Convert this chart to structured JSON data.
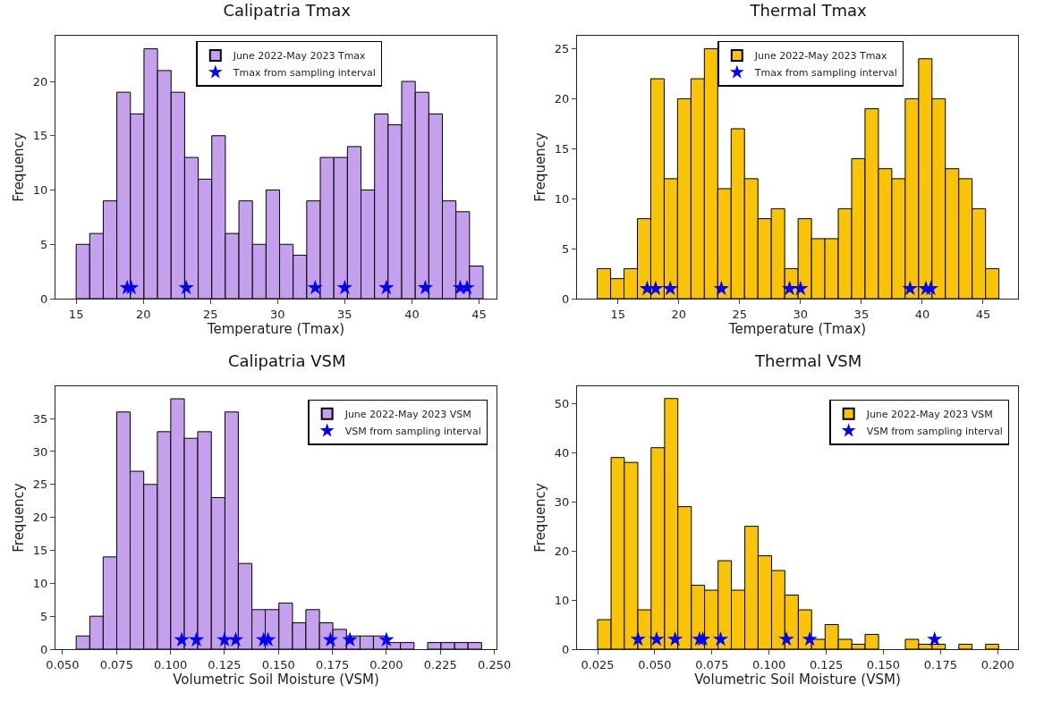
{
  "chart_data": [
    {
      "type": "histogram",
      "title": "Calipatria Tmax",
      "xlabel": "Temperature (Tmax)",
      "ylabel": "Frequency",
      "xlim": [
        13.46,
        46.3
      ],
      "xticks": [
        15,
        20,
        25,
        30,
        35,
        40,
        45
      ],
      "ylim": [
        0,
        24.2
      ],
      "yticks": [
        0,
        5,
        10,
        15,
        20
      ],
      "grid": false,
      "legend": "top",
      "series": [
        {
          "type": "histogram",
          "name": "June 2022-May 2023 Tmax",
          "color": "#c5a0ec",
          "bins": [
            15.0,
            16.01,
            17.02,
            18.03,
            19.04,
            20.05,
            21.06,
            22.07,
            23.08,
            24.09,
            25.1,
            26.11,
            27.12,
            28.13,
            29.14,
            30.15,
            31.16,
            32.17,
            33.18,
            34.19,
            35.2,
            36.21,
            37.22,
            38.23,
            39.24,
            40.25,
            41.26,
            42.27,
            43.28,
            44.29,
            45.3
          ],
          "values": [
            5,
            6,
            9,
            19,
            17,
            23,
            21,
            19,
            13,
            11,
            15,
            6,
            9,
            5,
            10,
            5,
            4,
            9,
            13,
            13,
            14,
            10,
            17,
            16,
            20,
            19,
            17,
            9,
            8,
            3
          ]
        },
        {
          "type": "scatter",
          "name": "Tmax from sampling interval",
          "color": "#0000ff",
          "marker": "star",
          "x": [
            18.8,
            19.1,
            23.2,
            32.8,
            35.0,
            38.1,
            41.0,
            43.6,
            44.1
          ],
          "values": [
            1,
            1,
            1,
            1,
            1,
            1,
            1,
            1,
            1
          ]
        }
      ]
    },
    {
      "type": "histogram",
      "title": "Thermal Tmax",
      "xlabel": "Temperature (Tmax)",
      "ylabel": "Frequency",
      "xlim": [
        11.64,
        47.87
      ],
      "xticks": [
        15,
        20,
        25,
        30,
        35,
        40,
        45
      ],
      "ylim": [
        0,
        26.3
      ],
      "yticks": [
        0,
        5,
        10,
        15,
        20,
        25
      ],
      "grid": false,
      "legend": "top",
      "series": [
        {
          "type": "histogram",
          "name": "June 2022-May 2023 Tmax",
          "color": "#f9c306",
          "bins": [
            13.3,
            14.4,
            15.5,
            16.6,
            17.7,
            18.8,
            19.9,
            21.0,
            22.1,
            23.2,
            24.3,
            25.4,
            26.5,
            27.6,
            28.7,
            29.8,
            30.9,
            32.0,
            33.1,
            34.2,
            35.3,
            36.4,
            37.5,
            38.6,
            39.7,
            40.8,
            41.9,
            43.0,
            44.1,
            45.2,
            46.3
          ],
          "values": [
            3,
            2,
            3,
            8,
            22,
            12,
            20,
            22,
            25,
            11,
            17,
            12,
            8,
            9,
            3,
            8,
            6,
            6,
            9,
            14,
            19,
            13,
            12,
            20,
            24,
            20,
            13,
            12,
            9,
            3
          ]
        },
        {
          "type": "scatter",
          "name": "Tmax from sampling interval",
          "color": "#0000ff",
          "marker": "star",
          "x": [
            17.4,
            18.1,
            19.3,
            23.5,
            29.1,
            30.0,
            39.0,
            40.3,
            40.7
          ],
          "values": [
            1,
            1,
            1,
            1,
            1,
            1,
            1,
            1,
            1
          ]
        }
      ]
    },
    {
      "type": "histogram",
      "title": "Calipatria VSM",
      "xlabel": "Volumetric Soil Moisture (VSM)",
      "ylabel": "Frequency",
      "xlim": [
        0.0467,
        0.251
      ],
      "xticks": [
        {
          "value": 0.05,
          "label": "0.050"
        },
        0.075,
        {
          "value": 0.1,
          "label": "0.100"
        },
        0.125,
        {
          "value": 0.15,
          "label": "0.150"
        },
        0.175,
        {
          "value": 0.2,
          "label": "0.200"
        },
        0.225,
        {
          "value": 0.25,
          "label": "0.250"
        }
      ],
      "ylim": [
        0,
        39.9
      ],
      "yticks": [
        0,
        5,
        10,
        15,
        20,
        25,
        30,
        35
      ],
      "grid": false,
      "legend": "top right",
      "series": [
        {
          "type": "histogram",
          "name": "June 2022-May 2023 VSM",
          "color": "#c5a0ec",
          "bins": [
            0.0563,
            0.0626,
            0.0688,
            0.0751,
            0.0813,
            0.0876,
            0.0939,
            0.1001,
            0.1064,
            0.1126,
            0.1189,
            0.1252,
            0.1314,
            0.1377,
            0.1439,
            0.1502,
            0.1565,
            0.1627,
            0.169,
            0.1752,
            0.1815,
            0.1878,
            0.194,
            0.2003,
            0.2065,
            0.2128,
            0.2191,
            0.2253,
            0.2316,
            0.2378,
            0.2441
          ],
          "values": [
            2,
            5,
            14,
            36,
            27,
            25,
            33,
            38,
            32,
            33,
            23,
            36,
            13,
            6,
            6,
            7,
            4,
            6,
            4,
            3,
            2,
            2,
            2,
            1,
            1,
            0,
            1,
            1,
            1,
            1
          ]
        },
        {
          "type": "scatter",
          "name": "VSM from sampling interval",
          "color": "#0000ff",
          "marker": "star",
          "x": [
            0.1052,
            0.112,
            0.125,
            0.1302,
            0.1431,
            0.1452,
            0.1741,
            0.1831,
            0.2
          ],
          "values": [
            1.4,
            1.4,
            1.4,
            1.4,
            1.4,
            1.4,
            1.4,
            1.4,
            1.4
          ]
        }
      ]
    },
    {
      "type": "histogram",
      "title": "Thermal VSM",
      "xlabel": "Volumetric Soil Moisture (VSM)",
      "ylabel": "Frequency",
      "xlim": [
        0.016,
        0.2089
      ],
      "xticks": [
        0.025,
        {
          "value": 0.05,
          "label": "0.050"
        },
        0.075,
        {
          "value": 0.1,
          "label": "0.100"
        },
        0.125,
        {
          "value": 0.15,
          "label": "0.150"
        },
        0.175,
        {
          "value": 0.2,
          "label": "0.200"
        }
      ],
      "ylim": [
        0,
        53.5
      ],
      "yticks": [
        0,
        10,
        20,
        30,
        40,
        50
      ],
      "grid": false,
      "legend": "top right",
      "series": [
        {
          "type": "histogram",
          "name": "June 2022-May 2023 VSM",
          "color": "#f9c306",
          "bins": [
            0.025,
            0.0309,
            0.0367,
            0.0426,
            0.0484,
            0.0543,
            0.0601,
            0.066,
            0.0718,
            0.0777,
            0.0835,
            0.0894,
            0.0952,
            0.1011,
            0.1069,
            0.1128,
            0.1186,
            0.1245,
            0.1303,
            0.1362,
            0.142,
            0.1479,
            0.1596,
            0.1654,
            0.1713,
            0.1771,
            0.183,
            0.1888,
            0.1947,
            0.2004
          ],
          "values": [
            6,
            39,
            38,
            8,
            41,
            51,
            29,
            13,
            12,
            18,
            12,
            25,
            19,
            16,
            11,
            8,
            2,
            5,
            2,
            1,
            3,
            0,
            2,
            1,
            1,
            0,
            1,
            0,
            1
          ]
        },
        {
          "type": "scatter",
          "name": "VSM from sampling interval",
          "color": "#0000ff",
          "marker": "star",
          "x": [
            0.0427,
            0.0508,
            0.0589,
            0.0696,
            0.071,
            0.0788,
            0.1076,
            0.1178,
            0.1724
          ],
          "values": [
            2,
            2,
            2,
            2,
            2,
            2,
            2,
            2,
            2
          ]
        }
      ]
    }
  ]
}
